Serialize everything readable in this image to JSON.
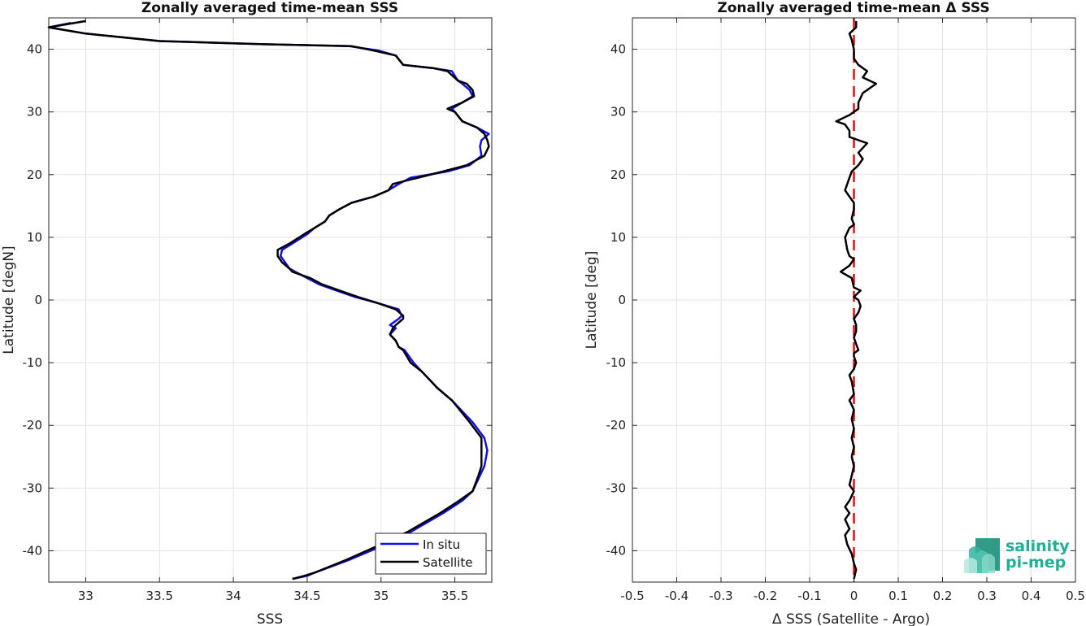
{
  "chart_data": [
    {
      "type": "line",
      "title": "Zonally averaged time-mean SSS",
      "xlabel": "SSS",
      "ylabel": "Latitude [degN]",
      "xlim": [
        32.75,
        35.75
      ],
      "ylim": [
        -45,
        45
      ],
      "xticks": [
        33,
        33.5,
        34,
        34.5,
        35,
        35.5
      ],
      "xtick_labels": [
        "33",
        "33.5",
        "34",
        "34.5",
        "35",
        "35.5"
      ],
      "yticks": [
        -40,
        -30,
        -20,
        -10,
        0,
        10,
        20,
        30,
        40
      ],
      "ytick_labels": [
        "-40",
        "-30",
        "-20",
        "-10",
        "0",
        "10",
        "20",
        "30",
        "40"
      ],
      "grid": true,
      "legend_position": "bottom-right",
      "series": [
        {
          "name": "In situ",
          "color": "#1010e0",
          "points": [
            [
              34.4,
              -44.5
            ],
            [
              34.5,
              -44.0
            ],
            [
              34.55,
              -43.5
            ],
            [
              34.78,
              -41.5
            ],
            [
              34.98,
              -39.5
            ],
            [
              35.2,
              -37.0
            ],
            [
              35.42,
              -34.0
            ],
            [
              35.55,
              -32.0
            ],
            [
              35.62,
              -30.5
            ],
            [
              35.67,
              -28.0
            ],
            [
              35.7,
              -26.5
            ],
            [
              35.72,
              -24.0
            ],
            [
              35.7,
              -22.0
            ],
            [
              35.62,
              -19.5
            ],
            [
              35.48,
              -16.0
            ],
            [
              35.38,
              -14.0
            ],
            [
              35.28,
              -11.5
            ],
            [
              35.22,
              -10.0
            ],
            [
              35.16,
              -8.0
            ],
            [
              35.12,
              -7.5
            ],
            [
              35.1,
              -6.5
            ],
            [
              35.06,
              -5.5
            ],
            [
              35.1,
              -4.5
            ],
            [
              35.06,
              -4.0
            ],
            [
              35.12,
              -3.0
            ],
            [
              35.14,
              -2.5
            ],
            [
              35.12,
              -1.5
            ],
            [
              34.98,
              -0.5
            ],
            [
              34.82,
              0.5
            ],
            [
              34.7,
              1.5
            ],
            [
              34.58,
              2.5
            ],
            [
              34.5,
              3.5
            ],
            [
              34.42,
              4.5
            ],
            [
              34.38,
              5.0
            ],
            [
              34.35,
              6.0
            ],
            [
              34.32,
              7.0
            ],
            [
              34.33,
              8.0
            ],
            [
              34.4,
              9.0
            ],
            [
              34.5,
              10.5
            ],
            [
              34.55,
              11.5
            ],
            [
              34.62,
              12.5
            ],
            [
              34.65,
              13.5
            ],
            [
              34.72,
              14.5
            ],
            [
              34.8,
              15.5
            ],
            [
              34.95,
              16.5
            ],
            [
              35.05,
              17.5
            ],
            [
              35.12,
              18.5
            ],
            [
              35.2,
              19.5
            ],
            [
              35.45,
              20.5
            ],
            [
              35.6,
              21.5
            ],
            [
              35.68,
              23.0
            ],
            [
              35.67,
              24.5
            ],
            [
              35.68,
              25.5
            ],
            [
              35.73,
              26.5
            ],
            [
              35.65,
              27.5
            ],
            [
              35.55,
              28.5
            ],
            [
              35.5,
              30.0
            ],
            [
              35.48,
              30.5
            ],
            [
              35.55,
              31.5
            ],
            [
              35.62,
              32.5
            ],
            [
              35.6,
              33.5
            ],
            [
              35.55,
              34.5
            ],
            [
              35.52,
              35.0
            ],
            [
              35.48,
              36.5
            ],
            [
              35.35,
              37.0
            ],
            [
              35.15,
              37.5
            ],
            [
              35.1,
              39.0
            ],
            [
              34.98,
              39.8
            ],
            [
              34.78,
              40.5
            ],
            [
              34.2,
              40.8
            ],
            [
              33.5,
              41.3
            ],
            [
              33.0,
              42.5
            ],
            [
              32.75,
              43.5
            ],
            [
              32.9,
              44.2
            ]
          ]
        },
        {
          "name": "Satellite",
          "color": "#000000",
          "points": [
            [
              34.4,
              -44.5
            ],
            [
              34.48,
              -44.0
            ],
            [
              34.55,
              -43.5
            ],
            [
              34.76,
              -41.5
            ],
            [
              34.95,
              -39.5
            ],
            [
              35.18,
              -37.0
            ],
            [
              35.4,
              -34.0
            ],
            [
              35.53,
              -32.0
            ],
            [
              35.62,
              -30.5
            ],
            [
              35.66,
              -28.0
            ],
            [
              35.68,
              -26.5
            ],
            [
              35.68,
              -24.0
            ],
            [
              35.68,
              -22.0
            ],
            [
              35.6,
              -19.5
            ],
            [
              35.48,
              -16.0
            ],
            [
              35.38,
              -14.0
            ],
            [
              35.28,
              -11.5
            ],
            [
              35.2,
              -10.0
            ],
            [
              35.15,
              -8.0
            ],
            [
              35.12,
              -7.5
            ],
            [
              35.1,
              -6.5
            ],
            [
              35.06,
              -5.5
            ],
            [
              35.08,
              -4.5
            ],
            [
              35.1,
              -4.0
            ],
            [
              35.15,
              -3.0
            ],
            [
              35.15,
              -2.5
            ],
            [
              35.1,
              -1.5
            ],
            [
              34.98,
              -0.5
            ],
            [
              34.84,
              0.5
            ],
            [
              34.72,
              1.5
            ],
            [
              34.6,
              2.5
            ],
            [
              34.52,
              3.5
            ],
            [
              34.4,
              4.5
            ],
            [
              34.38,
              5.0
            ],
            [
              34.33,
              6.0
            ],
            [
              34.3,
              7.0
            ],
            [
              34.3,
              8.0
            ],
            [
              34.38,
              9.0
            ],
            [
              34.48,
              10.5
            ],
            [
              34.55,
              11.5
            ],
            [
              34.62,
              12.5
            ],
            [
              34.65,
              13.5
            ],
            [
              34.72,
              14.5
            ],
            [
              34.8,
              15.5
            ],
            [
              34.95,
              16.5
            ],
            [
              35.05,
              17.5
            ],
            [
              35.08,
              18.5
            ],
            [
              35.25,
              19.5
            ],
            [
              35.42,
              20.5
            ],
            [
              35.58,
              21.5
            ],
            [
              35.7,
              23.0
            ],
            [
              35.73,
              24.5
            ],
            [
              35.72,
              25.5
            ],
            [
              35.7,
              26.5
            ],
            [
              35.65,
              27.5
            ],
            [
              35.55,
              28.5
            ],
            [
              35.5,
              30.0
            ],
            [
              35.45,
              30.5
            ],
            [
              35.55,
              31.5
            ],
            [
              35.63,
              32.5
            ],
            [
              35.62,
              33.5
            ],
            [
              35.58,
              34.5
            ],
            [
              35.52,
              35.0
            ],
            [
              35.45,
              36.5
            ],
            [
              35.35,
              37.0
            ],
            [
              35.15,
              37.5
            ],
            [
              35.1,
              39.0
            ],
            [
              34.95,
              39.8
            ],
            [
              34.8,
              40.5
            ],
            [
              34.2,
              40.8
            ],
            [
              33.5,
              41.3
            ],
            [
              33.0,
              42.5
            ],
            [
              32.75,
              43.5
            ],
            [
              33.0,
              44.5
            ]
          ]
        }
      ]
    },
    {
      "type": "line",
      "title": "Zonally averaged time-mean Δ SSS",
      "xlabel": "Δ SSS (Satellite - Argo)",
      "ylabel": "Latitude [deg]",
      "xlim": [
        -0.5,
        0.5
      ],
      "ylim": [
        -45,
        45
      ],
      "xticks": [
        -0.5,
        -0.4,
        -0.3,
        -0.2,
        -0.1,
        0,
        0.1,
        0.2,
        0.3,
        0.4,
        0.5
      ],
      "xtick_labels": [
        "-0.5",
        "-0.4",
        "-0.3",
        "-0.2",
        "-0.1",
        "0",
        "0.1",
        "0.2",
        "0.3",
        "0.4",
        "0.5"
      ],
      "yticks": [
        -40,
        -30,
        -20,
        -10,
        0,
        10,
        20,
        30,
        40
      ],
      "ytick_labels": [
        "-40",
        "-30",
        "-20",
        "-10",
        "0",
        "10",
        "20",
        "30",
        "40"
      ],
      "grid": true,
      "reference_line": {
        "x": 0,
        "color": "#e01010",
        "style": "dashed"
      },
      "series": [
        {
          "color": "#000000",
          "points": [
            [
              0.0,
              -44.5
            ],
            [
              0.005,
              -43.0
            ],
            [
              0.0,
              -42.0
            ],
            [
              -0.005,
              -40.5
            ],
            [
              -0.015,
              -39.0
            ],
            [
              -0.02,
              -37.5
            ],
            [
              -0.01,
              -36.5
            ],
            [
              -0.02,
              -35.0
            ],
            [
              -0.01,
              -34.0
            ],
            [
              -0.02,
              -33.0
            ],
            [
              -0.01,
              -32.0
            ],
            [
              0.0,
              -30.5
            ],
            [
              -0.01,
              -29.5
            ],
            [
              -0.005,
              -28.0
            ],
            [
              0.0,
              -26.5
            ],
            [
              -0.005,
              -25.0
            ],
            [
              0.0,
              -23.5
            ],
            [
              -0.005,
              -22.0
            ],
            [
              0.0,
              -20.5
            ],
            [
              -0.005,
              -19.0
            ],
            [
              0.0,
              -17.5
            ],
            [
              -0.01,
              -16.0
            ],
            [
              0.0,
              -15.0
            ],
            [
              -0.005,
              -13.0
            ],
            [
              -0.01,
              -12.0
            ],
            [
              0.0,
              -11.0
            ],
            [
              0.005,
              -10.0
            ],
            [
              0.0,
              -9.0
            ],
            [
              0.0,
              -8.5
            ],
            [
              0.01,
              -8.0
            ],
            [
              0.005,
              -7.0
            ],
            [
              0.0,
              -6.0
            ],
            [
              0.005,
              -5.0
            ],
            [
              0.005,
              -4.0
            ],
            [
              0.0,
              -3.0
            ],
            [
              0.01,
              -2.0
            ],
            [
              0.015,
              -1.0
            ],
            [
              0.01,
              0.0
            ],
            [
              0.0,
              0.5
            ],
            [
              0.015,
              1.5
            ],
            [
              0.0,
              2.0
            ],
            [
              -0.005,
              3.5
            ],
            [
              -0.03,
              4.5
            ],
            [
              -0.01,
              5.5
            ],
            [
              0.0,
              6.5
            ],
            [
              -0.01,
              7.0
            ],
            [
              -0.015,
              8.0
            ],
            [
              -0.02,
              10.0
            ],
            [
              -0.01,
              11.5
            ],
            [
              0.0,
              12.0
            ],
            [
              -0.005,
              13.0
            ],
            [
              0.0,
              14.5
            ],
            [
              0.0,
              15.5
            ],
            [
              -0.01,
              16.5
            ],
            [
              -0.02,
              17.5
            ],
            [
              -0.015,
              18.5
            ],
            [
              -0.01,
              19.5
            ],
            [
              -0.005,
              20.5
            ],
            [
              0.01,
              21.5
            ],
            [
              0.02,
              22.5
            ],
            [
              0.01,
              23.5
            ],
            [
              0.03,
              25.0
            ],
            [
              -0.01,
              26.0
            ],
            [
              -0.01,
              27.0
            ],
            [
              -0.02,
              28.0
            ],
            [
              -0.04,
              28.5
            ],
            [
              -0.01,
              29.5
            ],
            [
              0.01,
              30.5
            ],
            [
              0.01,
              31.5
            ],
            [
              0.02,
              33.0
            ],
            [
              0.05,
              34.5
            ],
            [
              0.02,
              35.5
            ],
            [
              0.03,
              36.5
            ],
            [
              0.01,
              37.5
            ],
            [
              0.0,
              38.5
            ],
            [
              0.0,
              40.0
            ],
            [
              -0.005,
              41.5
            ],
            [
              -0.01,
              42.5
            ],
            [
              0.005,
              43.5
            ],
            [
              0.005,
              44.5
            ]
          ]
        }
      ]
    }
  ],
  "logo": {
    "line1": "salinity",
    "line2": "pi-mep",
    "color": "#1fae96"
  },
  "legend": {
    "insitu_label": "In situ",
    "satellite_label": "Satellite"
  }
}
